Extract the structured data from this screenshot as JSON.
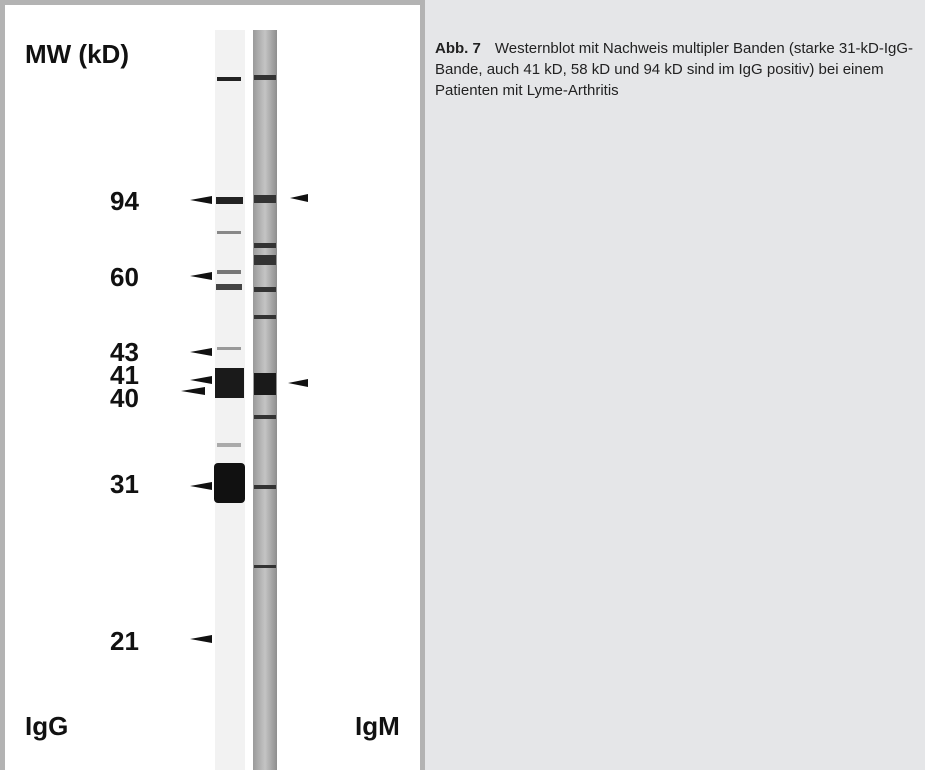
{
  "figure": {
    "axis_label": "MW (kD)",
    "markers": [
      "94",
      "60",
      "43",
      "41",
      "40",
      "31",
      "21"
    ],
    "lanes": [
      "IgG",
      "IgM"
    ]
  },
  "caption": {
    "label": "Abb. 7",
    "text": "Westernblot mit Nachweis multipler Banden (starke 31-kD-IgG-Bande, auch 41 kD, 58 kD und 94 kD sind im IgG positiv) bei einem Patienten mit Lyme-Arthritis"
  }
}
